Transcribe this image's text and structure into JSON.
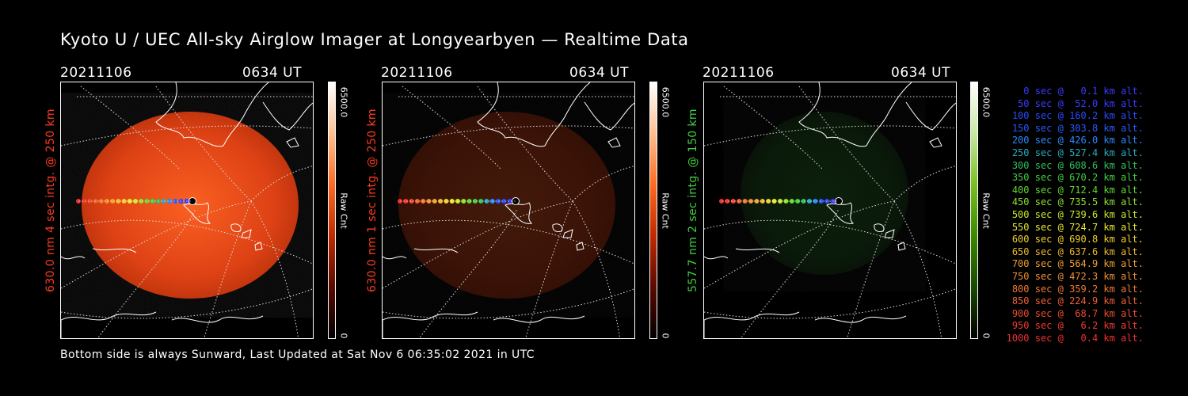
{
  "title": "Kyoto U / UEC All-sky Airglow Imager at Longyearbyen — Realtime Data",
  "footer": "Bottom side is always Sunward, Last Updated at Sat Nov  6 06:35:02 2021 in UTC",
  "panels": [
    {
      "date": "20211106",
      "time": "0634 UT",
      "ylabel": "630.0 nm 4 sec intg. @ 250 km",
      "ylabel_color": "#ff3b1e",
      "cbar_max": "6500.0",
      "cbar_min": "0",
      "cbar_unit": "Raw Cnt",
      "theme": "red",
      "intensity": 1.0
    },
    {
      "date": "20211106",
      "time": "0634 UT",
      "ylabel": "630.0 nm 1 sec intg. @ 250 km",
      "ylabel_color": "#ff3b1e",
      "cbar_max": "6500.0",
      "cbar_min": "0",
      "cbar_unit": "Raw Cnt",
      "theme": "red",
      "intensity": 0.25
    },
    {
      "date": "20211106",
      "time": "0634 UT",
      "ylabel": "557.7 nm 2 sec intg. @ 150 km",
      "ylabel_color": "#3fd03f",
      "cbar_max": "6500.0",
      "cbar_min": "0",
      "cbar_unit": "Raw Cnt",
      "theme": "green",
      "intensity": 0.3
    }
  ],
  "legend": [
    {
      "text": "0 sec @   0.1 km alt.",
      "color": "#3a3aff"
    },
    {
      "text": "50 sec @  52.0 km alt.",
      "color": "#3a3aff"
    },
    {
      "text": "100 sec @ 160.2 km alt.",
      "color": "#2a4aff"
    },
    {
      "text": "150 sec @ 303.8 km alt.",
      "color": "#2a5aff"
    },
    {
      "text": "200 sec @ 426.0 km alt.",
      "color": "#2a8aff"
    },
    {
      "text": "250 sec @ 527.4 km alt.",
      "color": "#2aaabf"
    },
    {
      "text": "300 sec @ 608.6 km alt.",
      "color": "#30c060"
    },
    {
      "text": "350 sec @ 670.2 km alt.",
      "color": "#40d040"
    },
    {
      "text": "400 sec @ 712.4 km alt.",
      "color": "#60d830"
    },
    {
      "text": "450 sec @ 735.5 km alt.",
      "color": "#90e030"
    },
    {
      "text": "500 sec @ 739.6 km alt.",
      "color": "#c8e830"
    },
    {
      "text": "550 sec @ 724.7 km alt.",
      "color": "#e8e830"
    },
    {
      "text": "600 sec @ 690.8 km alt.",
      "color": "#f0d030"
    },
    {
      "text": "650 sec @ 637.6 km alt.",
      "color": "#f0b830"
    },
    {
      "text": "700 sec @ 564.9 km alt.",
      "color": "#f0a030"
    },
    {
      "text": "750 sec @ 472.3 km alt.",
      "color": "#f09030"
    },
    {
      "text": "800 sec @ 359.2 km alt.",
      "color": "#f07830"
    },
    {
      "text": "850 sec @ 224.9 km alt.",
      "color": "#f06030"
    },
    {
      "text": "900 sec @  68.7 km alt.",
      "color": "#f04a30"
    },
    {
      "text": "950 sec @   6.2 km alt.",
      "color": "#f03a30"
    },
    {
      "text": "1000 sec @   0.4 km alt.",
      "color": "#f03030"
    }
  ]
}
